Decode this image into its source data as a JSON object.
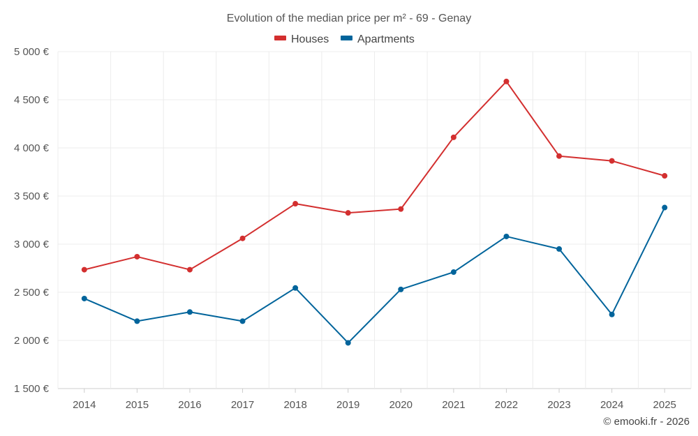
{
  "chart_data": {
    "type": "line",
    "title": "Evolution of the median price per m² - 69 - Genay",
    "categories": [
      "2014",
      "2015",
      "2016",
      "2017",
      "2018",
      "2019",
      "2020",
      "2021",
      "2022",
      "2023",
      "2024",
      "2025"
    ],
    "series": [
      {
        "name": "Houses",
        "color": "#d32f2f",
        "values": [
          2735,
          2870,
          2735,
          3060,
          3420,
          3325,
          3365,
          4110,
          4690,
          3915,
          3865,
          3710
        ]
      },
      {
        "name": "Apartments",
        "color": "#01649b",
        "values": [
          2435,
          2200,
          2295,
          2200,
          2545,
          1975,
          2530,
          2710,
          3080,
          2950,
          2270,
          3380
        ]
      }
    ],
    "ylim": [
      1500,
      5000
    ],
    "yticks": [
      1500,
      2000,
      2500,
      3000,
      3500,
      4000,
      4500,
      5000
    ],
    "ytick_labels": [
      "1 500 €",
      "2 000 €",
      "2 500 €",
      "3 000 €",
      "3 500 €",
      "4 000 €",
      "4 500 €",
      "5 000 €"
    ],
    "xlabel": "",
    "ylabel": "",
    "legend": "top-center",
    "grid": true
  },
  "credit": "© emooki.fr - 2026"
}
